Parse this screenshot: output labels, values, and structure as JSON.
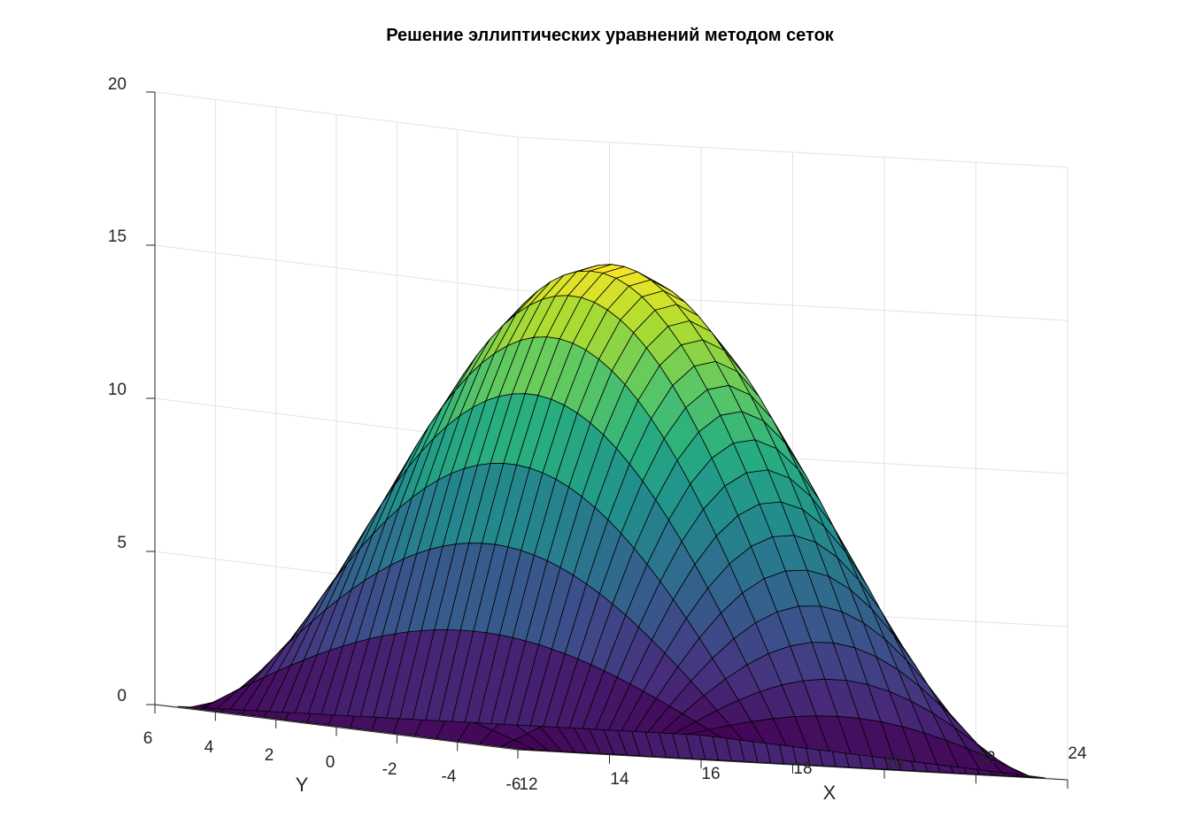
{
  "chart_data": {
    "type": "surface",
    "title": "Решение эллиптических уравнений методом сеток",
    "xlabel": "X",
    "ylabel": "Y",
    "zlabel": "",
    "xlim": [
      12,
      24
    ],
    "ylim": [
      -6,
      6
    ],
    "zlim": [
      0,
      20
    ],
    "x_ticks": [
      "12",
      "14",
      "16",
      "18",
      "20",
      "22",
      "24"
    ],
    "y_ticks": [
      "6",
      "4",
      "2",
      "0",
      "-2",
      "-4",
      "-6"
    ],
    "z_ticks": [
      "0",
      "5",
      "10",
      "15",
      "20"
    ],
    "surface_domain": {
      "x": [
        12.3,
        23.7
      ],
      "y": [
        -5.7,
        5.7
      ]
    },
    "grid_size": {
      "x_lines": 41,
      "y_lines": 17
    },
    "peak_value": 15.6,
    "colormap": [
      "#440154",
      "#472f7d",
      "#3b528b",
      "#2c728e",
      "#21918c",
      "#28ae80",
      "#5ec962",
      "#addc30",
      "#fde725"
    ],
    "grid": true
  }
}
